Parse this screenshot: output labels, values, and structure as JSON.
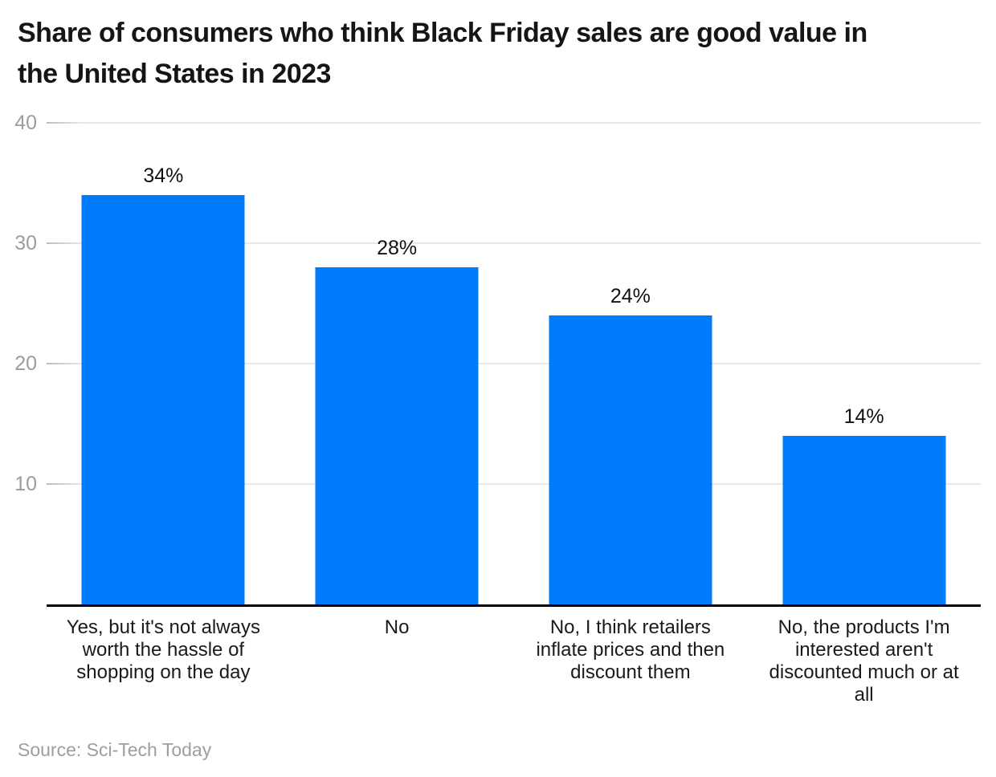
{
  "title": "Share of consumers who think Black Friday sales are good value in the United States in 2023",
  "source": "Source: Sci-Tech Today",
  "colors": {
    "bar": "#007bfc",
    "grid": "#e8e8e8",
    "axis": "#000000",
    "y_tick_label": "#9c9c9c",
    "value_label": "#111111",
    "title": "#151515",
    "source": "#9e9e9e",
    "background": "#ffffff"
  },
  "chart_data": {
    "type": "bar",
    "title": "Share of consumers who think Black Friday sales are good value in the United States in 2023",
    "categories": [
      "Yes, but it's not always worth the hassle of shopping on the day",
      "No",
      "No, I think retailers inflate prices and then discount them",
      "No, the products I'm interested aren't discounted much or at all"
    ],
    "values": [
      34,
      28,
      24,
      14
    ],
    "value_labels": [
      "34%",
      "28%",
      "24%",
      "14%"
    ],
    "xlabel": "",
    "ylabel": "",
    "ylim": [
      0,
      40
    ],
    "yticks": [
      10,
      20,
      30,
      40
    ],
    "grid": true,
    "legend": false,
    "source": "Source: Sci-Tech Today"
  }
}
